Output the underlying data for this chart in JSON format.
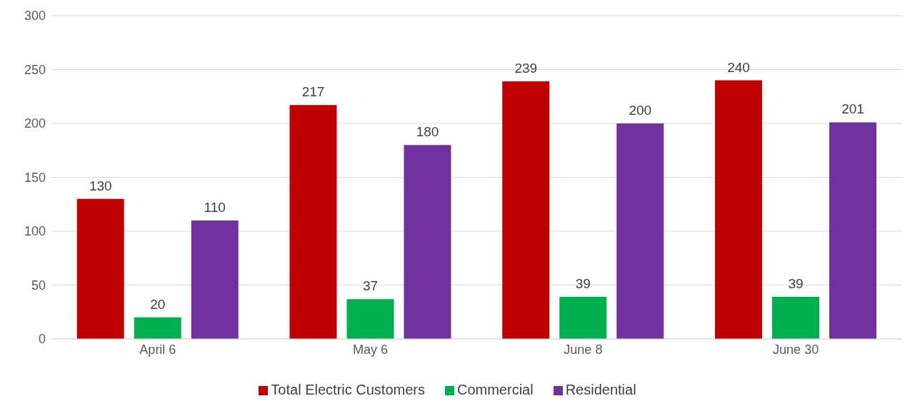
{
  "chart_data": {
    "type": "bar",
    "categories": [
      "April 6",
      "May 6",
      "June 8",
      "June 30"
    ],
    "series": [
      {
        "name": "Total Electric Customers",
        "color": "#c00000",
        "values": [
          130,
          217,
          239,
          240
        ]
      },
      {
        "name": "Commercial",
        "color": "#00b050",
        "values": [
          20,
          37,
          39,
          39
        ]
      },
      {
        "name": "Residential",
        "color": "#7030a0",
        "values": [
          110,
          180,
          200,
          201
        ]
      }
    ],
    "ylim": [
      0,
      300
    ],
    "yticks": [
      0,
      50,
      100,
      150,
      200,
      250,
      300
    ],
    "grid": "y",
    "legend": "bottom",
    "data_labels": true
  }
}
